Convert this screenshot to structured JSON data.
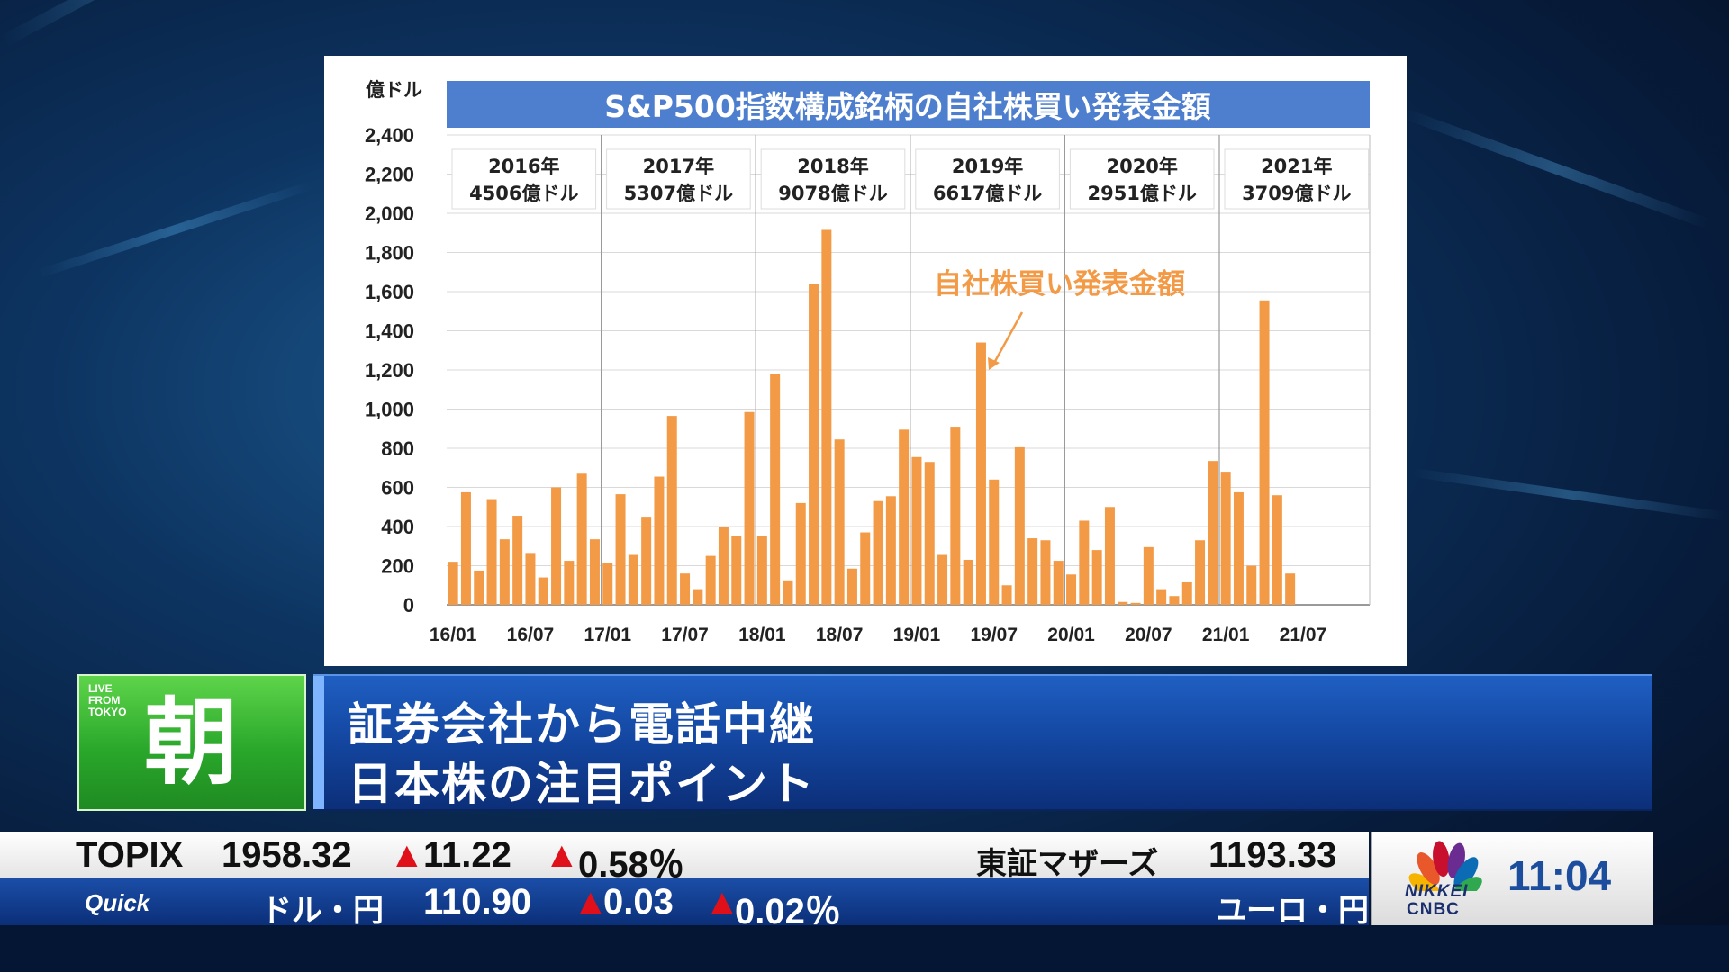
{
  "chart_data": {
    "type": "bar",
    "title": "S&P500指数構成銘柄の自社株買い発表金額",
    "ylabel": "億ドル",
    "ylim": [
      0,
      2400
    ],
    "yticks": [
      "0",
      "200",
      "400",
      "600",
      "800",
      "1,000",
      "1,200",
      "1,400",
      "1,600",
      "1,800",
      "2,000",
      "2,200",
      "2,400"
    ],
    "xtick_labels": [
      "16/01",
      "16/07",
      "17/01",
      "17/07",
      "18/01",
      "18/07",
      "19/01",
      "19/07",
      "20/01",
      "20/07",
      "21/01",
      "21/07"
    ],
    "start_month": "2016/01",
    "annotation": "自社株買い発表金額",
    "series_name": "自社株買い発表金額",
    "color": "#f39a47",
    "year_boxes": [
      {
        "year": "2016年",
        "total": "4506億ドル"
      },
      {
        "year": "2017年",
        "total": "5307億ドル"
      },
      {
        "year": "2018年",
        "total": "9078億ドル"
      },
      {
        "year": "2019年",
        "total": "6617億ドル"
      },
      {
        "year": "2020年",
        "total": "2951億ドル"
      },
      {
        "year": "2021年",
        "total": "3709億ドル"
      }
    ],
    "values": [
      220,
      575,
      175,
      540,
      335,
      455,
      265,
      140,
      600,
      225,
      670,
      335,
      215,
      565,
      255,
      450,
      655,
      965,
      160,
      80,
      250,
      400,
      350,
      985,
      350,
      1180,
      125,
      520,
      1640,
      1915,
      845,
      185,
      370,
      530,
      555,
      895,
      755,
      730,
      255,
      910,
      230,
      1340,
      640,
      100,
      805,
      340,
      330,
      225,
      155,
      430,
      280,
      500,
      15,
      10,
      295,
      80,
      45,
      115,
      330,
      735,
      680,
      575,
      200,
      1555,
      560,
      160
    ]
  },
  "lower_third": {
    "brand_small_1": "LIVE",
    "brand_small_2": "FROM",
    "brand_small_3": "TOKYO",
    "brand_kanji": "朝",
    "title_line1": "証券会社から電話中継",
    "title_line2": "日本株の注目ポイント"
  },
  "ticker": {
    "index1_name": "TOPIX",
    "index1_value": "1958.32",
    "index1_change": "11.22",
    "index1_pct": "0.58％",
    "index2_name": "東証マザーズ",
    "index2_value": "1193.33",
    "source": "Quick",
    "fx1_name": "ドル・円",
    "fx1_value": "110.90",
    "fx1_change": "0.03",
    "fx1_pct": "0.02％",
    "fx2_name": "ユーロ・円",
    "up_symbol": "▲"
  },
  "clock": {
    "logo_word1": "NIKKEI",
    "logo_word2": "CNBC",
    "time": "11:04"
  }
}
